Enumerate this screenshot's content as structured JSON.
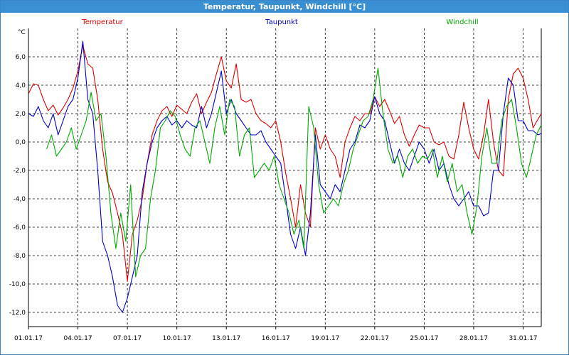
{
  "window": {
    "title": "Temperatur, Taupunkt, Windchill [°C]"
  },
  "chart_data": {
    "type": "line",
    "title": "Temperatur, Taupunkt, Windchill [°C]",
    "ylabel": "°C",
    "ylim": [
      -13,
      8
    ],
    "xlim": [
      0,
      31.1
    ],
    "yticks": [
      6,
      4,
      2,
      0,
      -2,
      -4,
      -6,
      -8,
      -10,
      -12
    ],
    "ytick_labels": [
      "6,0",
      "4,0",
      "2,0",
      "0,0",
      "-2,0",
      "-4,0",
      "-6,0",
      "-8,0",
      "-10,0",
      "-12,0"
    ],
    "xticks": [
      0,
      3,
      6,
      9,
      12,
      15,
      18,
      21,
      24,
      27,
      30
    ],
    "xtick_labels": [
      "01.01.17",
      "04.01.17",
      "07.01.17",
      "10.01.17",
      "13.01.17",
      "16.01.17",
      "19.01.17",
      "22.01.17",
      "25.01.17",
      "28.01.17",
      "31.01.17"
    ],
    "grid": true,
    "legend_position": "top",
    "series": [
      {
        "name": "Temperatur",
        "color": "#e00000",
        "x": [
          0,
          0.3,
          0.6,
          0.9,
          1.2,
          1.5,
          1.8,
          2.1,
          2.4,
          2.7,
          3.0,
          3.3,
          3.6,
          3.9,
          4.2,
          4.5,
          4.8,
          5.1,
          5.4,
          5.7,
          6.0,
          6.3,
          6.6,
          6.9,
          7.2,
          7.5,
          7.8,
          8.1,
          8.4,
          8.7,
          9.0,
          9.3,
          9.6,
          9.9,
          10.2,
          10.5,
          10.8,
          11.1,
          11.4,
          11.7,
          12.0,
          12.3,
          12.6,
          12.9,
          13.2,
          13.5,
          13.8,
          14.1,
          14.4,
          14.7,
          15.0,
          15.3,
          15.6,
          15.9,
          16.2,
          16.5,
          16.8,
          17.1,
          17.4,
          17.7,
          18.0,
          18.3,
          18.6,
          18.9,
          19.2,
          19.5,
          19.8,
          20.1,
          20.4,
          20.7,
          21.0,
          21.3,
          21.6,
          21.9,
          22.2,
          22.5,
          22.8,
          23.1,
          23.4,
          23.7,
          24.0,
          24.3,
          24.6,
          24.9,
          25.2,
          25.5,
          25.8,
          26.1,
          26.4,
          26.7,
          27.0,
          27.3,
          27.6,
          27.9,
          28.2,
          28.5,
          28.8,
          29.1,
          29.4,
          29.7,
          30.0,
          30.3,
          30.6,
          30.9,
          31.1
        ],
        "y": [
          3.4,
          4.1,
          4.0,
          3.0,
          2.2,
          2.6,
          1.9,
          2.4,
          3.0,
          3.8,
          5.0,
          6.8,
          5.5,
          5.2,
          3.0,
          -0.5,
          -2.8,
          -3.6,
          -5.0,
          -6.5,
          -9.8,
          -6.5,
          -5.5,
          -4.0,
          -1.5,
          0.5,
          1.5,
          2.2,
          2.5,
          1.8,
          2.6,
          2.3,
          2.0,
          2.8,
          3.4,
          2.0,
          2.8,
          3.5,
          4.8,
          6.0,
          4.3,
          3.8,
          5.5,
          3.0,
          2.8,
          3.0,
          2.0,
          1.5,
          1.3,
          1.0,
          1.5,
          0.0,
          -2.2,
          -4.0,
          -6.0,
          -3.0,
          -5.0,
          -6.0,
          1.0,
          -0.5,
          0.5,
          -0.5,
          -1.0,
          -2.5,
          0.0,
          1.0,
          1.8,
          1.5,
          2.0,
          2.0,
          3.2,
          2.5,
          3.0,
          2.2,
          1.3,
          1.8,
          0.5,
          -0.3,
          0.5,
          1.2,
          1.0,
          1.0,
          0.0,
          -0.2,
          0.0,
          -1.0,
          -1.2,
          0.5,
          2.8,
          1.0,
          -0.5,
          -1.2,
          0.5,
          3.0,
          0.0,
          -2.0,
          -2.4,
          3.0,
          4.8,
          5.2,
          4.5,
          3.0,
          1.0,
          1.6,
          2.0
        ]
      },
      {
        "name": "Taupunkt",
        "color": "#0000cc",
        "x": [
          0,
          0.3,
          0.6,
          0.9,
          1.2,
          1.5,
          1.8,
          2.1,
          2.4,
          2.7,
          3.0,
          3.3,
          3.6,
          3.9,
          4.2,
          4.5,
          4.8,
          5.1,
          5.4,
          5.7,
          6.0,
          6.3,
          6.6,
          6.9,
          7.2,
          7.5,
          7.8,
          8.1,
          8.4,
          8.7,
          9.0,
          9.3,
          9.6,
          9.9,
          10.2,
          10.5,
          10.8,
          11.1,
          11.4,
          11.7,
          12.0,
          12.3,
          12.6,
          12.9,
          13.2,
          13.5,
          13.8,
          14.1,
          14.4,
          14.7,
          15.0,
          15.3,
          15.6,
          15.9,
          16.2,
          16.5,
          16.8,
          17.1,
          17.4,
          17.7,
          18.0,
          18.3,
          18.6,
          18.9,
          19.2,
          19.5,
          19.8,
          20.1,
          20.4,
          20.7,
          21.0,
          21.3,
          21.6,
          21.9,
          22.2,
          22.5,
          22.8,
          23.1,
          23.4,
          23.7,
          24.0,
          24.3,
          24.6,
          24.9,
          25.2,
          25.5,
          25.8,
          26.1,
          26.4,
          26.7,
          27.0,
          27.3,
          27.6,
          27.9,
          28.2,
          28.5,
          28.8,
          29.1,
          29.4,
          29.7,
          30.0,
          30.3,
          30.6,
          30.9,
          31.1
        ],
        "y": [
          2.0,
          1.8,
          2.5,
          1.5,
          1.0,
          2.0,
          0.5,
          1.5,
          2.5,
          3.0,
          4.5,
          7.1,
          3.0,
          2.0,
          -2.0,
          -7.0,
          -8.0,
          -9.5,
          -11.5,
          -12.0,
          -11.0,
          -9.5,
          -8.0,
          -3.5,
          -1.5,
          0.0,
          1.0,
          1.5,
          1.8,
          1.2,
          1.5,
          1.0,
          1.5,
          1.2,
          1.0,
          2.5,
          1.0,
          2.0,
          3.5,
          5.0,
          2.0,
          3.0,
          2.0,
          1.5,
          1.0,
          0.5,
          0.5,
          0.8,
          0.0,
          -0.5,
          -1.0,
          -1.5,
          -4.0,
          -6.5,
          -7.5,
          -6.0,
          -8.0,
          -5.0,
          0.5,
          -3.0,
          -3.5,
          -4.0,
          -3.0,
          -3.5,
          -2.0,
          -0.5,
          0.0,
          1.2,
          1.0,
          1.5,
          3.2,
          2.0,
          1.5,
          0.0,
          -1.5,
          -0.5,
          -1.5,
          -2.0,
          -1.0,
          0.0,
          -0.5,
          -1.5,
          -0.5,
          -2.0,
          -1.5,
          -3.0,
          -4.0,
          -4.5,
          -4.0,
          -3.5,
          -4.5,
          -4.5,
          -5.2,
          -5.0,
          -2.0,
          -2.0,
          2.0,
          4.5,
          4.0,
          1.5,
          1.5,
          0.8,
          0.8,
          0.5,
          0.6
        ]
      },
      {
        "name": "Windchill",
        "color": "#00aa00",
        "x": [
          1.1,
          1.4,
          1.7,
          2.0,
          2.3,
          2.6,
          2.9,
          3.2,
          3.5,
          3.8,
          4.1,
          4.4,
          4.7,
          5.0,
          5.3,
          5.6,
          5.9,
          6.2,
          6.5,
          6.8,
          7.1,
          7.4,
          7.7,
          8.0,
          8.3,
          8.6,
          8.9,
          9.2,
          9.5,
          9.8,
          10.1,
          10.4,
          10.7,
          11.0,
          11.3,
          11.6,
          11.9,
          12.2,
          12.5,
          12.8,
          13.1,
          13.4,
          13.7,
          14.0,
          14.3,
          14.6,
          14.9,
          15.2,
          15.5,
          15.8,
          16.1,
          16.4,
          16.7,
          17.0,
          17.3,
          17.6,
          17.9,
          18.2,
          18.5,
          18.8,
          19.1,
          19.4,
          19.7,
          20.0,
          20.3,
          20.6,
          20.9,
          21.2,
          21.5,
          21.8,
          22.1,
          22.4,
          22.7,
          23.0,
          23.3,
          23.6,
          23.9,
          24.2,
          24.5,
          24.8,
          25.1,
          25.4,
          25.7,
          26.0,
          26.3,
          26.6,
          26.9,
          27.2,
          27.5,
          27.8,
          28.1,
          28.4,
          28.7,
          29.0,
          29.3,
          29.6,
          29.9,
          30.2,
          30.5,
          30.8,
          31.1
        ],
        "y": [
          -0.5,
          0.5,
          -1.0,
          -0.5,
          0.0,
          1.0,
          -0.5,
          0.5,
          1.5,
          3.5,
          1.5,
          2.0,
          -1.0,
          -5.0,
          -7.5,
          -5.0,
          -7.0,
          -3.0,
          -9.5,
          -8.0,
          -7.5,
          -4.0,
          -2.0,
          1.0,
          1.5,
          2.2,
          1.8,
          0.5,
          -0.5,
          -1.0,
          1.0,
          1.5,
          0.0,
          -1.5,
          1.0,
          2.5,
          0.5,
          3.0,
          2.5,
          -1.0,
          0.5,
          1.0,
          -2.5,
          -2.0,
          -1.5,
          -2.0,
          -1.0,
          -3.0,
          -4.0,
          -5.0,
          -6.5,
          -5.5,
          -7.5,
          2.5,
          1.0,
          -3.0,
          -5.0,
          -4.5,
          -4.0,
          -4.5,
          -3.0,
          -2.0,
          -0.5,
          0.5,
          1.5,
          1.8,
          3.0,
          5.2,
          2.0,
          -0.5,
          -1.5,
          -1.0,
          -2.5,
          -1.0,
          -0.5,
          -1.5,
          -1.0,
          -1.2,
          -0.5,
          -2.5,
          -1.0,
          -2.8,
          -1.5,
          -3.5,
          -3.0,
          -5.0,
          -6.5,
          -4.5,
          -1.0,
          1.0,
          -1.5,
          -1.5,
          1.5,
          2.5,
          3.0,
          1.0,
          -1.5,
          -2.5,
          -1.0,
          0.5,
          1.2
        ]
      }
    ]
  }
}
